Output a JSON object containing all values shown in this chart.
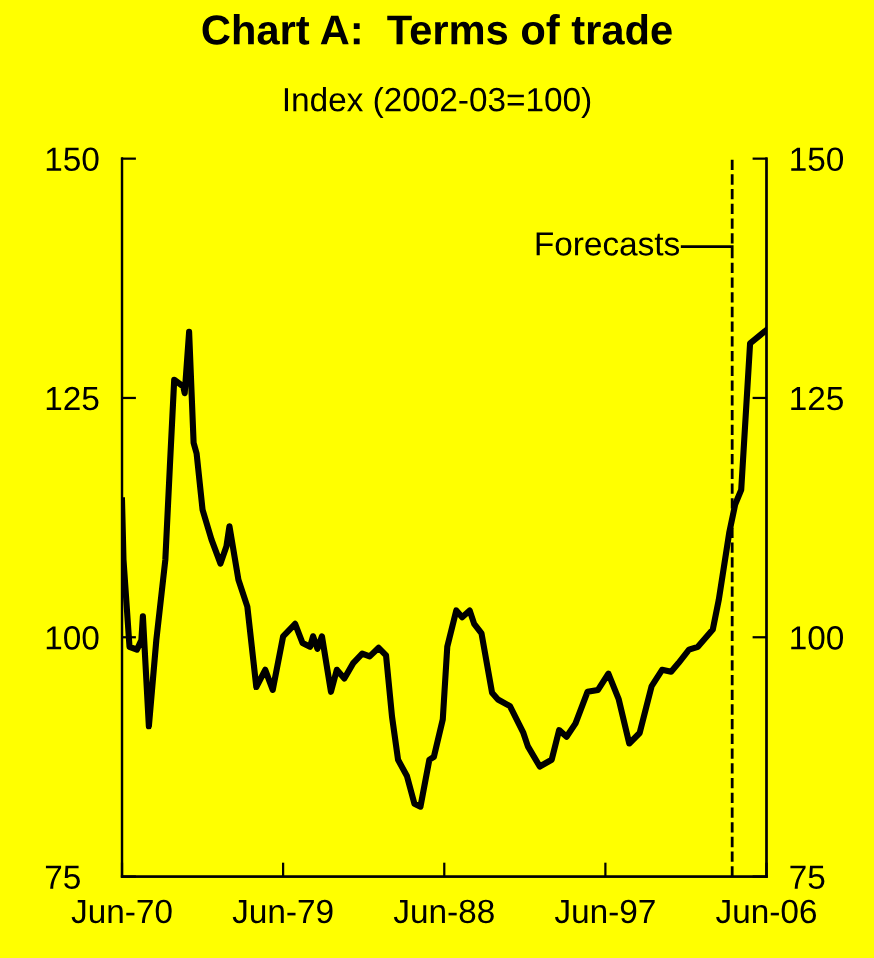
{
  "chart_data": {
    "type": "line",
    "title": "Chart A:  Terms of trade",
    "subtitle": "Index (2002-03=100)",
    "x": [
      "1970-06",
      "1970-07",
      "1970-11",
      "1971-04",
      "1971-07",
      "1971-08",
      "1971-12",
      "1972-05",
      "1972-11",
      "1973-02",
      "1973-05",
      "1973-11",
      "1973-12",
      "1974-03",
      "1974-06",
      "1974-08",
      "1974-12",
      "1975-06",
      "1975-12",
      "1976-04",
      "1976-06",
      "1976-12",
      "1977-06",
      "1977-10",
      "1977-12",
      "1978-06",
      "1978-11",
      "1979-06",
      "1980-02",
      "1980-07",
      "1980-12",
      "1981-02",
      "1981-05",
      "1981-08",
      "1982-02",
      "1982-06",
      "1982-11",
      "1983-05",
      "1983-11",
      "1984-04",
      "1984-10",
      "1985-03",
      "1985-07",
      "1985-11",
      "1986-05",
      "1986-10",
      "1987-02",
      "1987-08",
      "1987-11",
      "1988-05",
      "1988-08",
      "1989-02",
      "1989-06",
      "1989-11",
      "1990-02",
      "1990-07",
      "1991-02",
      "1991-06",
      "1992-02",
      "1992-11",
      "1993-02",
      "1993-10",
      "1994-06",
      "1994-11",
      "1995-04",
      "1995-10",
      "1996-06",
      "1997-01",
      "1997-08",
      "1998-03",
      "1998-10",
      "1999-05",
      "2000-01",
      "2000-08",
      "2001-02",
      "2001-07",
      "2002-02",
      "2002-08",
      "2003-06",
      "2003-10",
      "2004-05",
      "2004-09",
      "2005-01",
      "2005-07",
      "2006-06"
    ],
    "series": [
      {
        "color": "#000000",
        "values": [
          114.3,
          108.1,
          99.0,
          98.7,
          99.7,
          102.2,
          90.7,
          99.7,
          108.1,
          117.8,
          126.9,
          126.2,
          125.5,
          131.9,
          120.3,
          119.2,
          113.3,
          110.2,
          107.7,
          109.5,
          111.6,
          106.0,
          103.2,
          97.6,
          94.8,
          96.6,
          94.5,
          100.1,
          101.4,
          99.4,
          99.0,
          100.1,
          98.8,
          100.1,
          94.3,
          96.6,
          95.7,
          97.3,
          98.3,
          98.0,
          98.9,
          98.1,
          91.7,
          87.2,
          85.5,
          82.6,
          82.3,
          87.2,
          87.5,
          91.4,
          99.0,
          102.8,
          102.1,
          102.8,
          101.4,
          100.4,
          94.2,
          93.5,
          92.8,
          90.0,
          88.6,
          86.5,
          87.2,
          90.3,
          89.6,
          91.0,
          94.3,
          94.5,
          96.2,
          93.5,
          88.9,
          90.0,
          94.9,
          96.6,
          96.4,
          97.3,
          98.7,
          99.0,
          100.8,
          103.9,
          110.9,
          113.9,
          115.4,
          130.7,
          132.1
        ]
      }
    ],
    "xlim": [
      "1970-06",
      "2006-06"
    ],
    "xticks": [
      {
        "value": "1970-06",
        "label": "Jun-70"
      },
      {
        "value": "1979-06",
        "label": "Jun-79"
      },
      {
        "value": "1988-06",
        "label": "Jun-88"
      },
      {
        "value": "1997-06",
        "label": "Jun-97"
      },
      {
        "value": "2006-06",
        "label": "Jun-06"
      }
    ],
    "ylim": [
      75,
      150
    ],
    "yticks": [
      75,
      100,
      125,
      150
    ],
    "y2lim": [
      75,
      150
    ],
    "y2ticks": [
      75,
      100,
      125,
      150
    ],
    "ref_lines": [
      {
        "axis": "x",
        "value": "2004-07",
        "label": "Forecasts",
        "line_style": "dashed",
        "color": "#000000"
      }
    ],
    "grid": false,
    "legend": false,
    "line_style": "solid",
    "marker": "none"
  }
}
